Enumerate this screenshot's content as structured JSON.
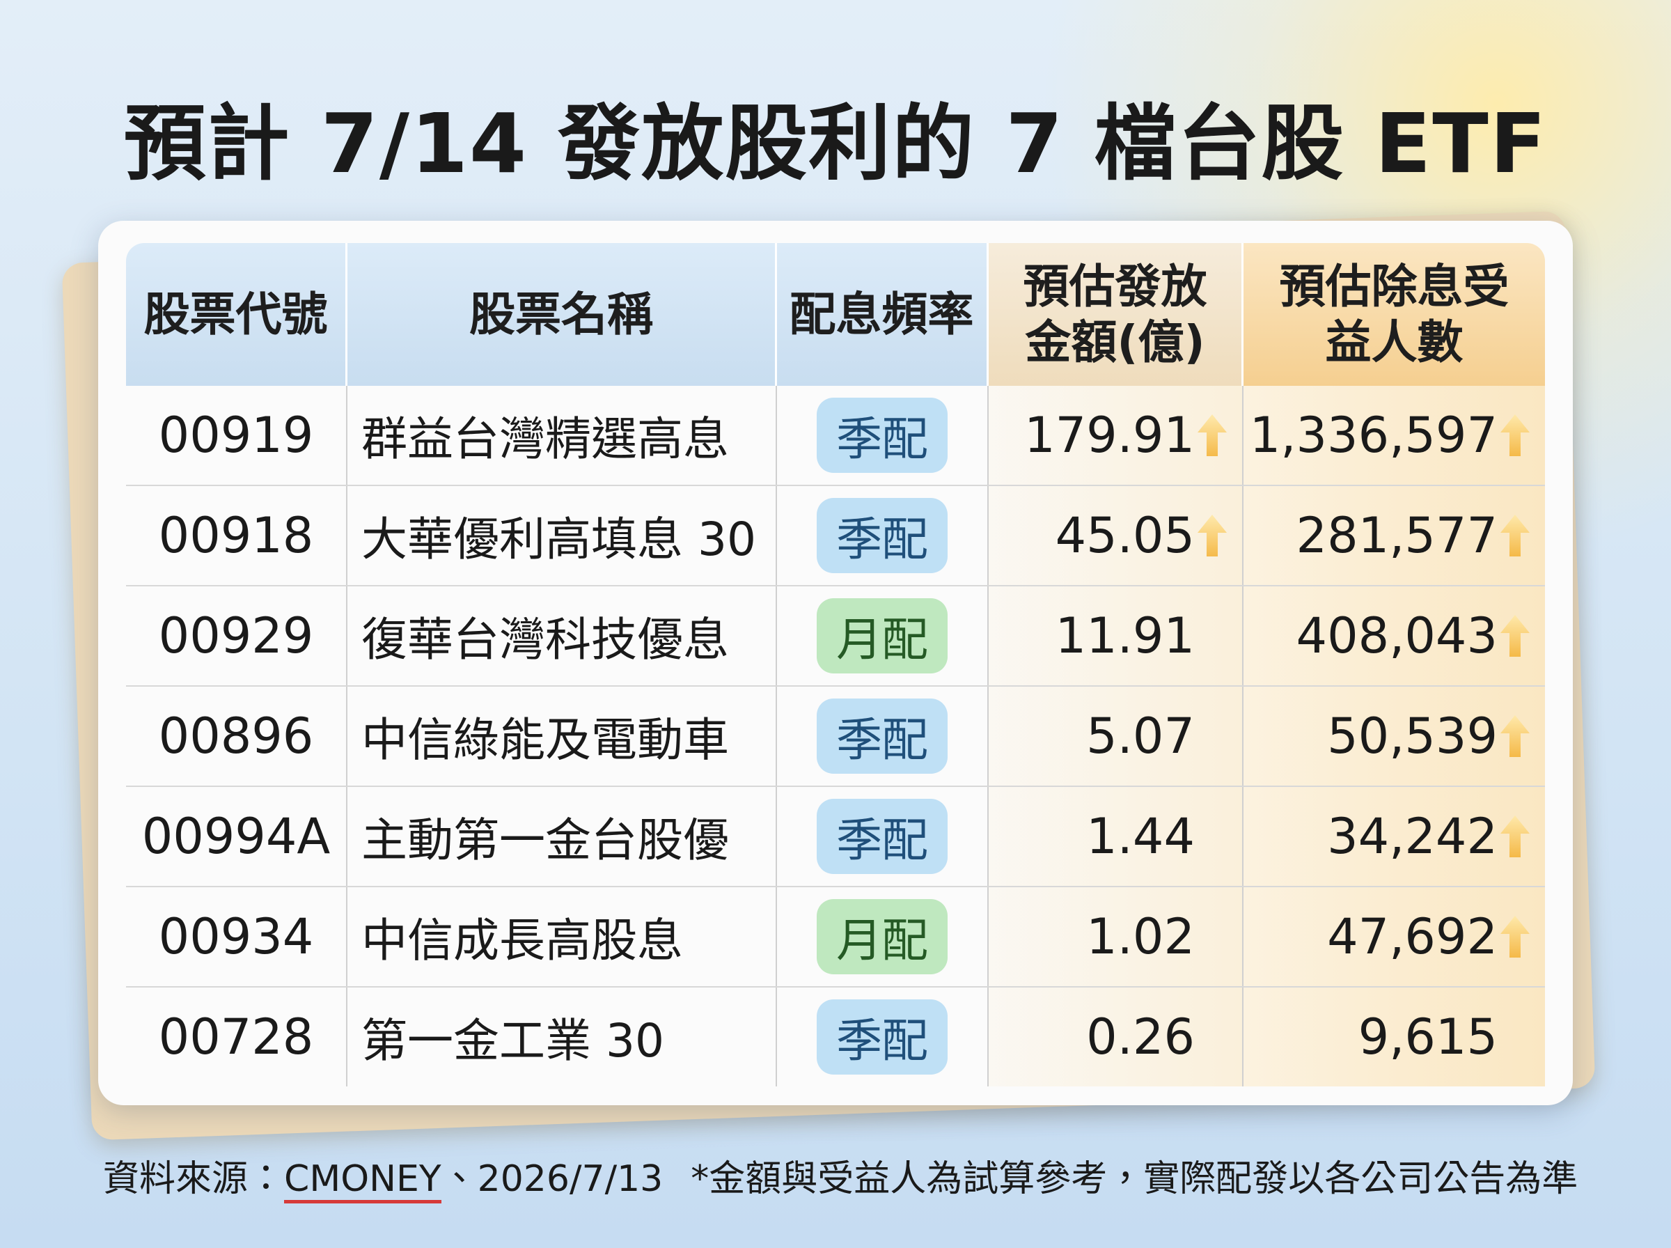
{
  "header": {
    "title": "預計 7/14 發放股利的 7 檔台股 ETF"
  },
  "table": {
    "columns": [
      [
        "股票代號"
      ],
      [
        "股票名稱"
      ],
      [
        "配息頻率"
      ],
      [
        "預估發放",
        "金額(億)"
      ],
      [
        "預估除息受",
        "益人數"
      ]
    ],
    "rows": [
      [
        "00919",
        "群益台灣精選高息",
        "季配",
        "179.91",
        "1,336,597"
      ],
      [
        "00918",
        "大華優利高填息 30",
        "季配",
        "45.05",
        "281,577"
      ],
      [
        "00929",
        "復華台灣科技優息",
        "月配",
        "11.91",
        "408,043"
      ],
      [
        "00896",
        "中信綠能及電動車",
        "季配",
        "5.07",
        "50,539"
      ],
      [
        "00994A",
        "主動第一金台股優",
        "季配",
        "1.44",
        "34,242"
      ],
      [
        "00934",
        "中信成長高股息",
        "月配",
        "1.02",
        "47,692"
      ],
      [
        "00728",
        "第一金工業 30",
        "季配",
        "0.26",
        "9,615"
      ]
    ]
  },
  "footer": {
    "source_label": "資料來源：",
    "source": "CMONEY",
    "date": "、2026/7/13",
    "note": "*金額與受益人為試算參考，實際配發以各公司公告為準"
  }
}
